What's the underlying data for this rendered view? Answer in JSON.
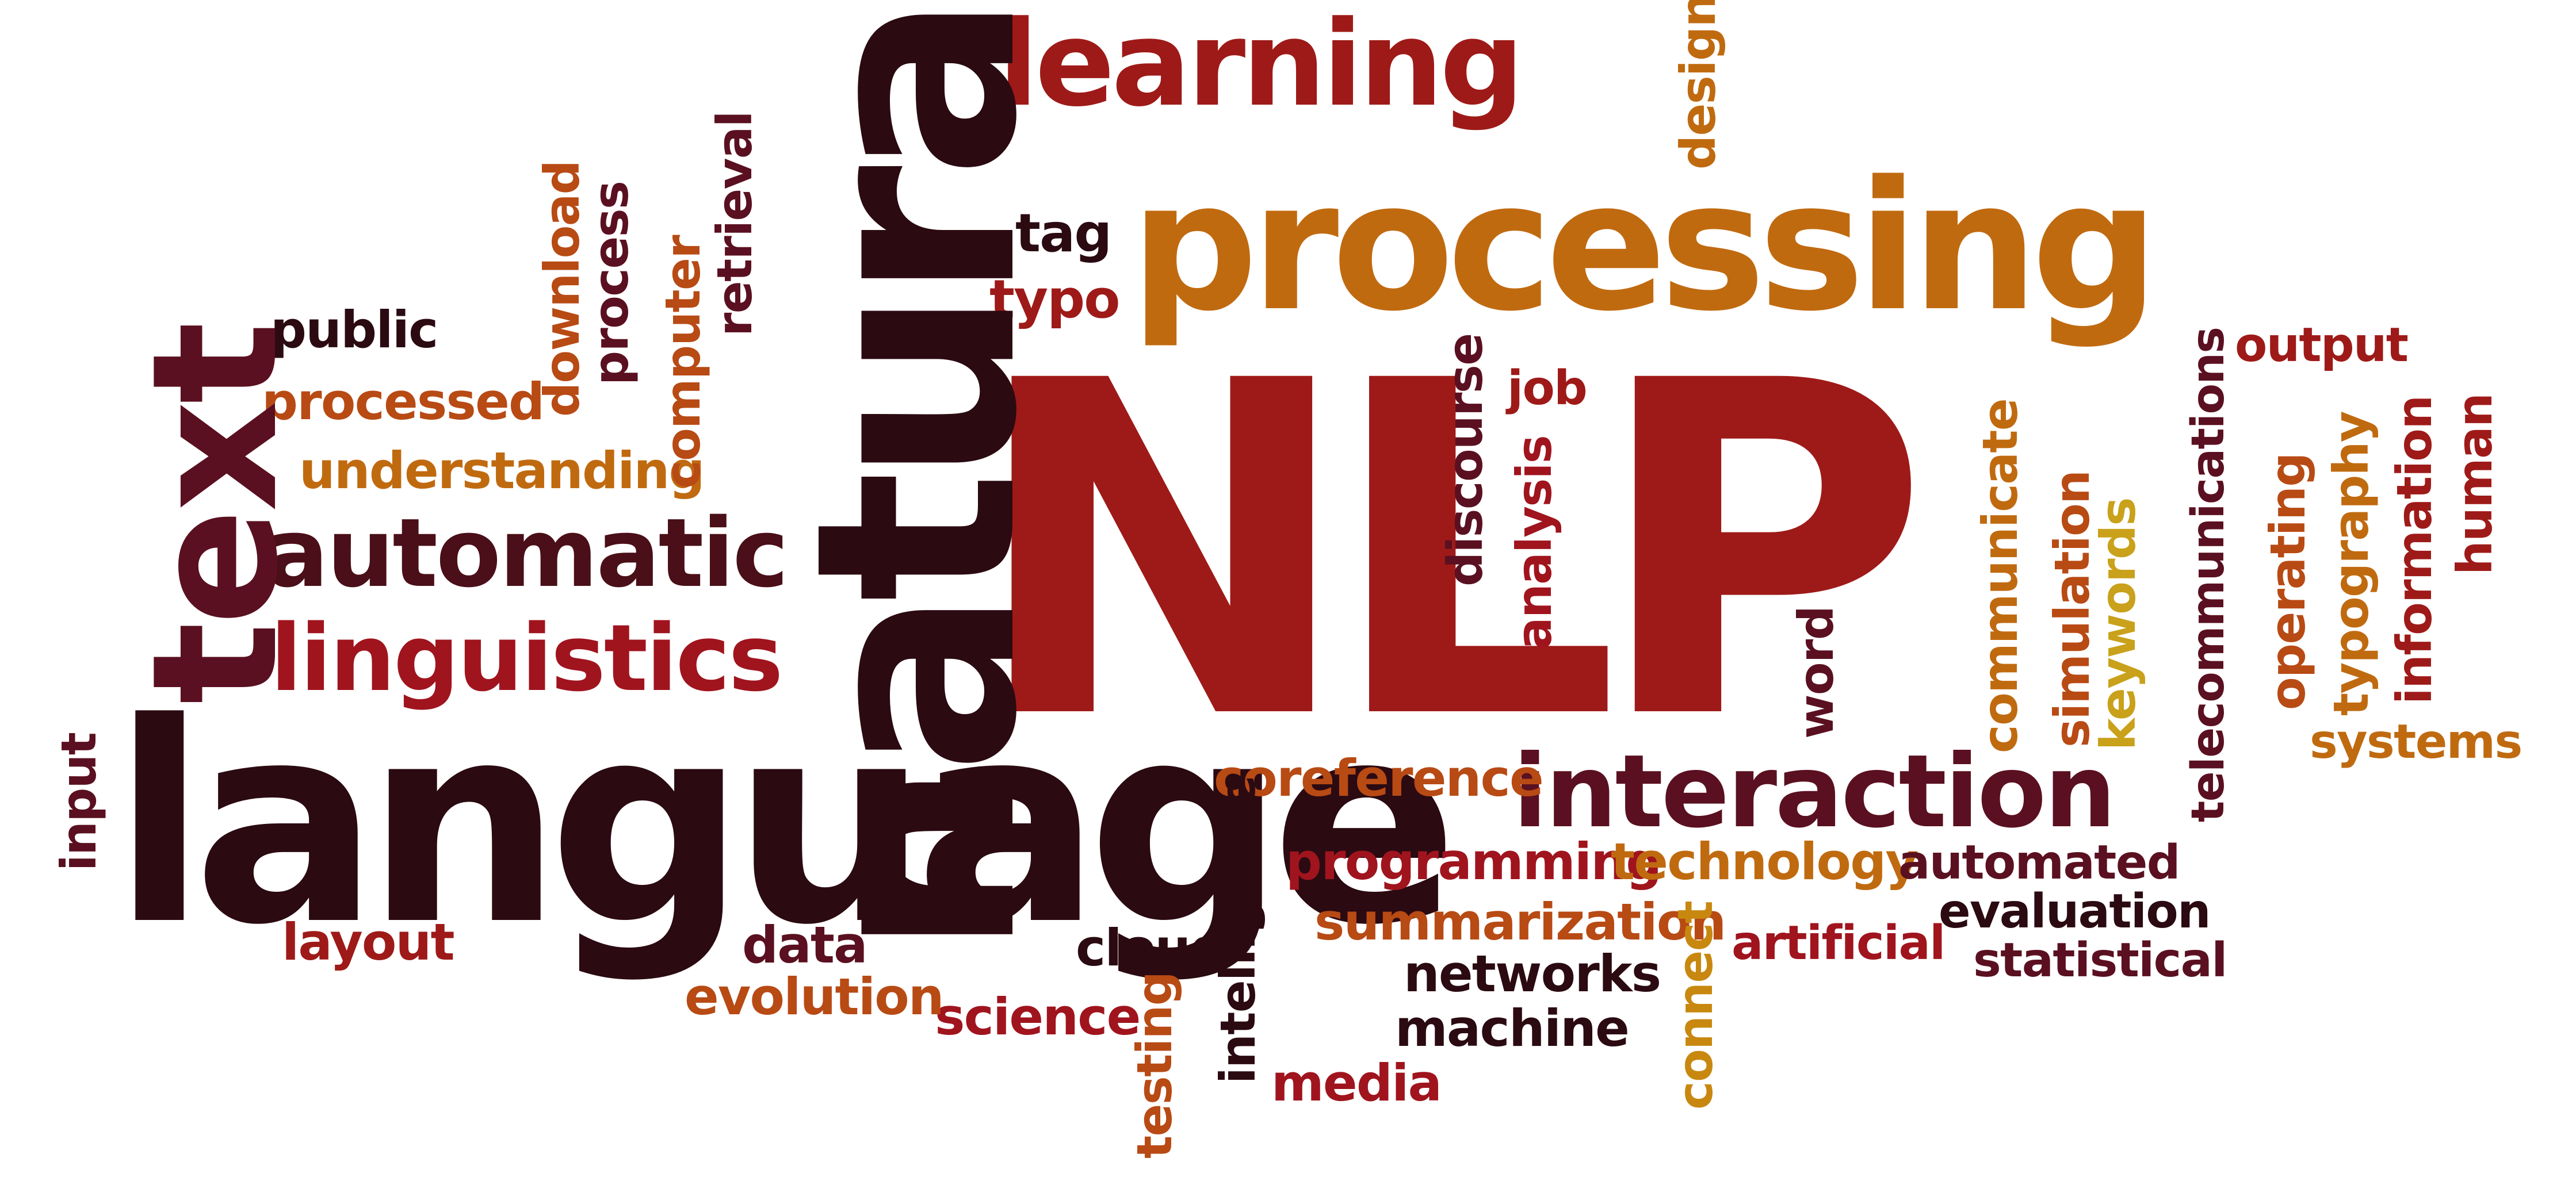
{
  "colors": {
    "dark": "#2b0a12",
    "maroon": "#5a1020",
    "red": "#9e1a18",
    "crimson": "#a0141e",
    "rust": "#b84a14",
    "orange": "#c06a10",
    "amber": "#c8880f",
    "gold": "#c9a11a"
  },
  "words": {
    "nlp": "NLP",
    "language": "language",
    "natural": "natural",
    "processing": "processing",
    "learning": "learning",
    "text": "text",
    "interaction": "interaction",
    "automatic": "automatic",
    "linguistics": "linguistics",
    "understanding": "understanding",
    "processed": "processed",
    "public": "public",
    "download": "download",
    "process": "process",
    "computer": "computer",
    "retrieval": "retrieval",
    "tag": "tag",
    "typo": "typo",
    "design": "design",
    "output": "output",
    "job": "job",
    "discourse": "discourse",
    "analysis": "analysis",
    "word": "word",
    "communicate": "communicate",
    "simulation": "simulation",
    "keywords": "keywords",
    "telecommunications": "telecommunications",
    "operating": "operating",
    "typography": "typography",
    "information": "information",
    "human": "human",
    "systems": "systems",
    "coreference": "coreference",
    "programming": "programming",
    "technology": "technology",
    "automated": "automated",
    "summarization": "summarization",
    "evaluation": "evaluation",
    "artificial": "artificial",
    "statistical": "statistical",
    "networks": "networks",
    "machine": "machine",
    "connect": "connect",
    "intelligence": "intelligence",
    "testing": "testing",
    "media": "media",
    "cloud": "cloud",
    "science": "science",
    "data": "data",
    "evolution": "evolution",
    "layout": "layout",
    "input": "input"
  }
}
